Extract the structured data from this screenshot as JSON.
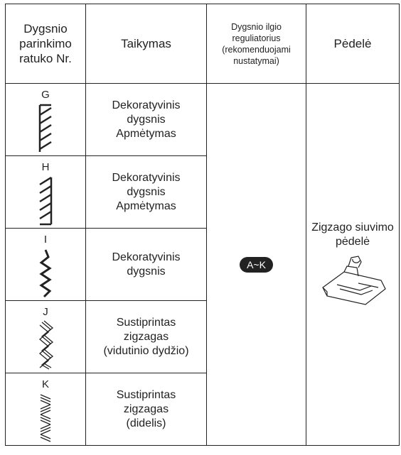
{
  "header": {
    "stitch_no": [
      "Dygsnio",
      "parinkimo",
      "ratuko Nr."
    ],
    "application": "Taikymas",
    "length": [
      "Dygsnio ilgio",
      "reguliatorius",
      "(rekomenduojami",
      "nustatymai)"
    ],
    "foot": "Pėdelė"
  },
  "rows": [
    {
      "letter": "G",
      "application": [
        "Dekoratyvinis",
        "dygsnis",
        "Apmėtymas"
      ]
    },
    {
      "letter": "H",
      "application": [
        "Dekoratyvinis",
        "dygsnis",
        "Apmėtymas"
      ]
    },
    {
      "letter": "I",
      "application": [
        "Dekoratyvinis",
        "dygsnis"
      ]
    },
    {
      "letter": "J",
      "application": [
        "Sustiprintas",
        "zigzagas",
        "(vidutinio dydžio)"
      ]
    },
    {
      "letter": "K",
      "application": [
        "Sustiprintas",
        "zigzagas",
        "(didelis)"
      ]
    }
  ],
  "length_setting": "A~K",
  "presser_foot": [
    "Zigzago siuvimo",
    "pėdelė"
  ]
}
